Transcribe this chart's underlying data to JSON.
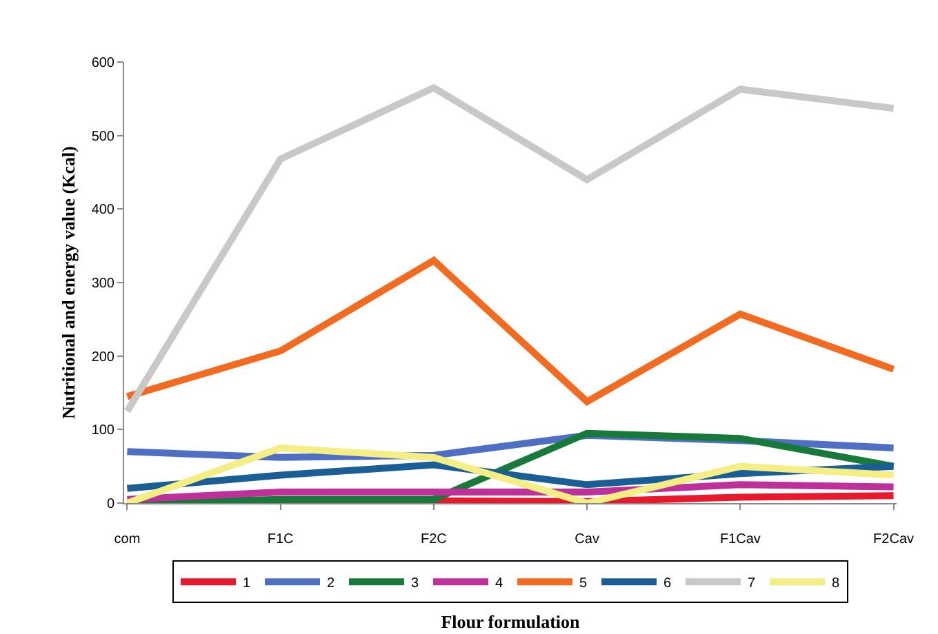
{
  "chart_data": {
    "type": "line",
    "xlabel": "Flour formulation",
    "ylabel": "Nutritional and energy value (Kcal)",
    "categories": [
      "com",
      "F1C",
      "F2C",
      "Cav",
      "F1Cav",
      "F2Cav"
    ],
    "ylim": [
      0,
      600
    ],
    "yticks": [
      0,
      100,
      200,
      300,
      400,
      500,
      600
    ],
    "grid": false,
    "legend": "bottom",
    "marker": "none",
    "line_style": "solid",
    "series": [
      {
        "name": "1",
        "color": "#e8192c",
        "values": [
          0,
          3,
          3,
          2,
          8,
          10
        ]
      },
      {
        "name": "2",
        "color": "#4f6fc4",
        "values": [
          70,
          62,
          65,
          92,
          85,
          75
        ]
      },
      {
        "name": "3",
        "color": "#177a3a",
        "values": [
          0,
          5,
          5,
          95,
          88,
          50
        ]
      },
      {
        "name": "4",
        "color": "#c0309a",
        "values": [
          5,
          15,
          15,
          15,
          25,
          22
        ]
      },
      {
        "name": "5",
        "color": "#f26b21",
        "values": [
          145,
          207,
          330,
          138,
          257,
          182
        ]
      },
      {
        "name": "6",
        "color": "#1a5e96",
        "values": [
          20,
          38,
          52,
          25,
          40,
          50
        ]
      },
      {
        "name": "7",
        "color": "#c8c8c8",
        "values": [
          125,
          468,
          565,
          440,
          563,
          537
        ]
      },
      {
        "name": "8",
        "color": "#f5ee84",
        "values": [
          0,
          75,
          62,
          0,
          50,
          38
        ]
      }
    ]
  }
}
